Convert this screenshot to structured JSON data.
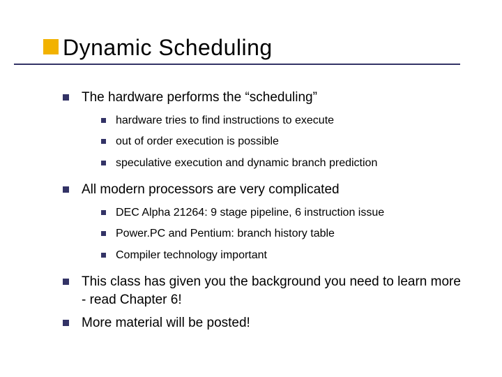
{
  "slide": {
    "title": "Dynamic Scheduling",
    "colors": {
      "bullet": "#333366",
      "accent": "#f2b200",
      "underline": "#333366",
      "text": "#000000",
      "background": "#ffffff"
    },
    "typography": {
      "title_fontsize": 32,
      "l1_fontsize": 19,
      "l2_fontsize": 16,
      "font_family": "Verdana"
    },
    "items": [
      {
        "text": "The hardware performs the “scheduling”",
        "sub": [
          "hardware tries to find instructions to execute",
          "out of order execution is possible",
          "speculative execution and dynamic branch prediction"
        ]
      },
      {
        "text": "All modern processors are very complicated",
        "sub": [
          "DEC Alpha 21264:  9 stage pipeline, 6 instruction issue",
          "Power.PC and Pentium:  branch history table",
          "Compiler technology important"
        ]
      },
      {
        "text": "This class has given you the background you need to learn more - read Chapter 6!",
        "sub": []
      },
      {
        "text": "More material will be posted!",
        "sub": []
      }
    ]
  }
}
